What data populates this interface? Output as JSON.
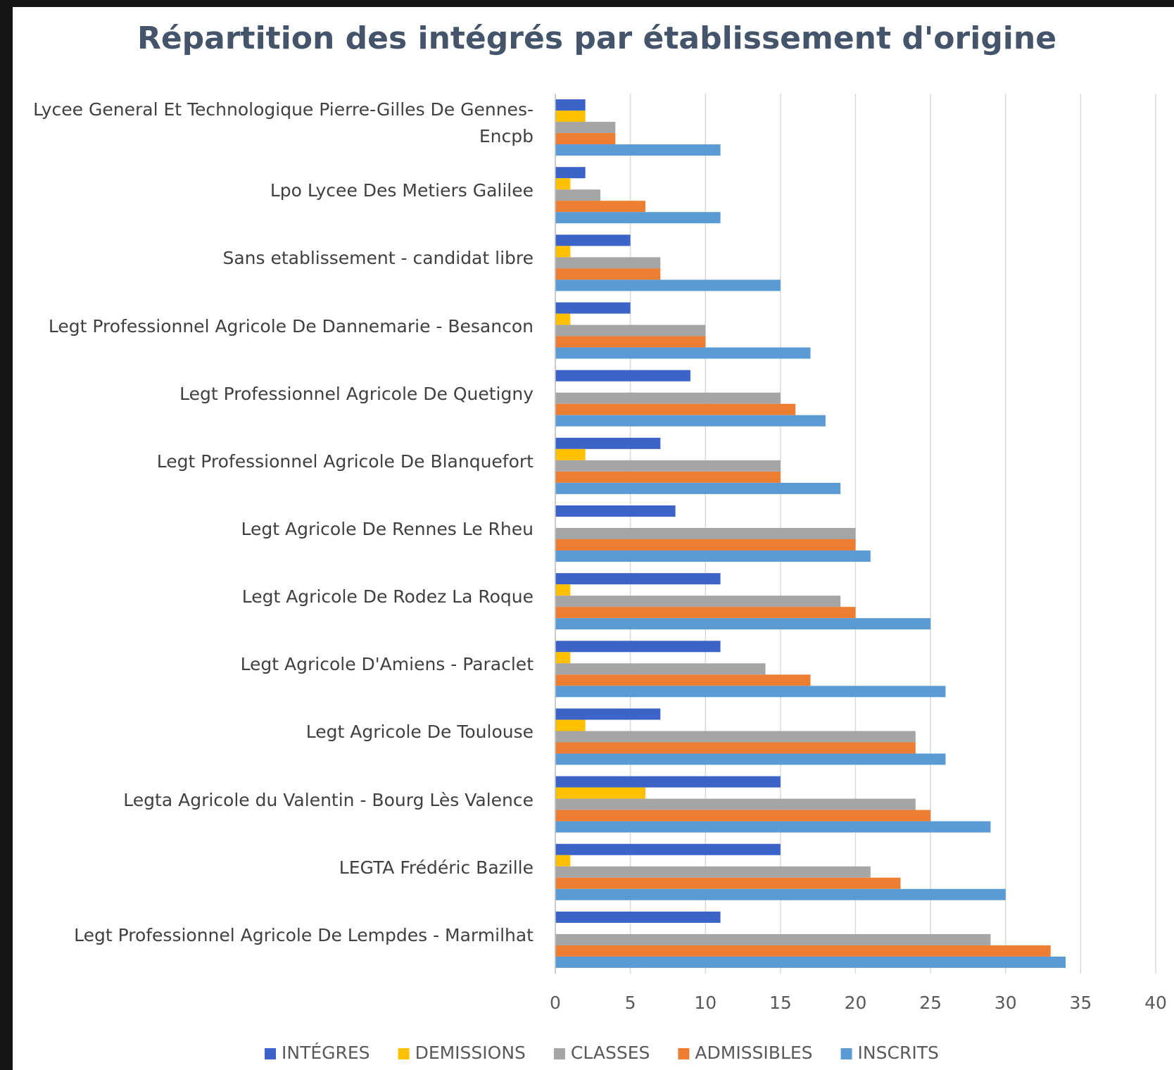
{
  "chart_data": {
    "type": "bar",
    "orientation": "horizontal",
    "title": "Répartition des intégrés par établissement d'origine",
    "categories": [
      "Lycee General Et Technologique Pierre-Gilles De Gennes-Encpb",
      "Lpo Lycee Des Metiers Galilee",
      "Sans etablissement - candidat libre",
      "Legt Professionnel Agricole De Dannemarie - Besancon",
      "Legt Professionnel Agricole De Quetigny",
      "Legt Professionnel Agricole De Blanquefort",
      "Legt Agricole De Rennes Le Rheu",
      "Legt Agricole De Rodez La Roque",
      "Legt Agricole D'Amiens - Paraclet",
      "Legt Agricole De Toulouse",
      "Legta Agricole du Valentin - Bourg Lès Valence",
      "LEGTA Frédéric Bazille",
      "Legt Professionnel Agricole De Lempdes - Marmilhat"
    ],
    "series": [
      {
        "name": "INTÉGRES",
        "color": "#3c63c8",
        "values": [
          2,
          2,
          5,
          5,
          9,
          7,
          8,
          11,
          11,
          7,
          15,
          15,
          11
        ]
      },
      {
        "name": "DEMISSIONS",
        "color": "#ffc000",
        "values": [
          2,
          1,
          1,
          1,
          0,
          2,
          0,
          1,
          1,
          2,
          6,
          1,
          0
        ]
      },
      {
        "name": "CLASSES",
        "color": "#a5a5a5",
        "values": [
          4,
          3,
          7,
          10,
          15,
          15,
          20,
          19,
          14,
          24,
          24,
          21,
          29
        ]
      },
      {
        "name": "ADMISSIBLES",
        "color": "#ed7d31",
        "values": [
          4,
          6,
          7,
          10,
          16,
          15,
          20,
          20,
          17,
          24,
          25,
          23,
          33
        ]
      },
      {
        "name": "INSCRITS",
        "color": "#5b9bd5",
        "values": [
          11,
          11,
          15,
          17,
          18,
          19,
          21,
          25,
          26,
          26,
          29,
          30,
          34
        ]
      }
    ],
    "xlim": [
      0,
      40
    ],
    "xticks": [
      0,
      5,
      10,
      15,
      20,
      25,
      30,
      35,
      40
    ],
    "grid": true,
    "legend": "bottom"
  }
}
